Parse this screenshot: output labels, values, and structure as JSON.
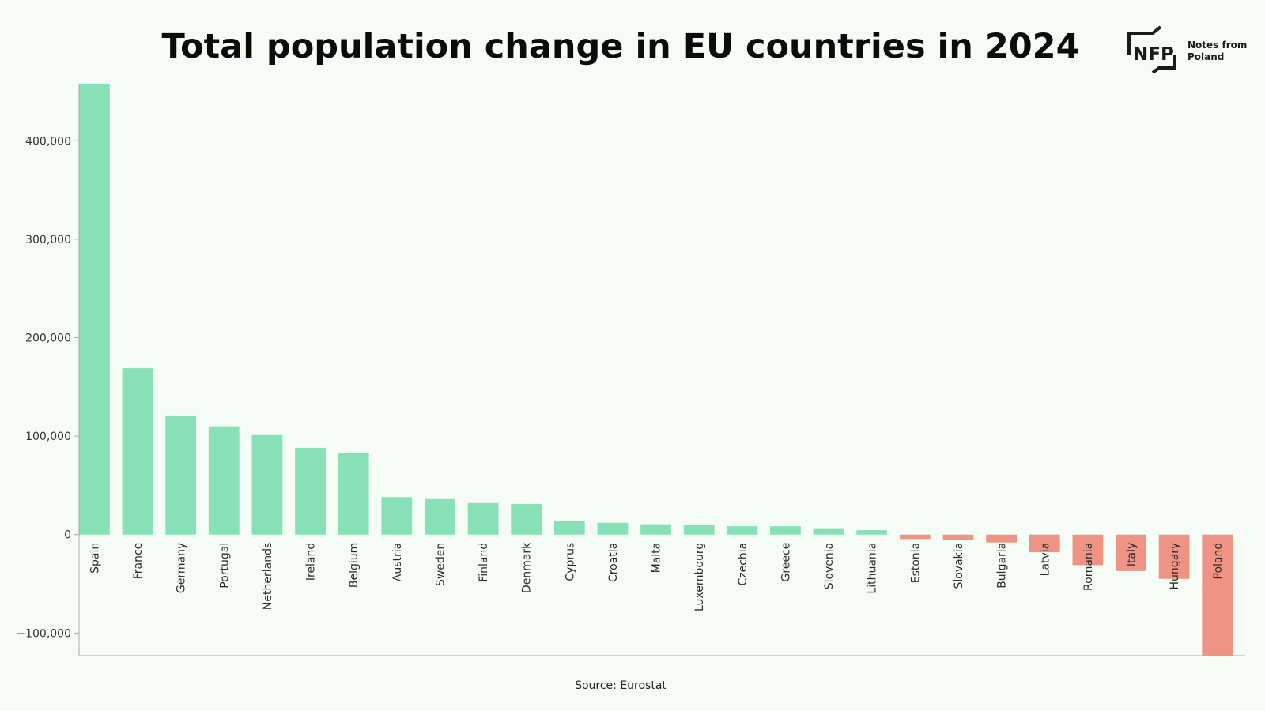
{
  "chart_data": {
    "type": "bar",
    "title": "Total population change in EU countries in 2024",
    "xlabel": "",
    "ylabel": "",
    "categories": [
      "Spain",
      "France",
      "Germany",
      "Portugal",
      "Netherlands",
      "Ireland",
      "Belgium",
      "Austria",
      "Sweden",
      "Finland",
      "Denmark",
      "Cyprus",
      "Croatia",
      "Malta",
      "Luxembourg",
      "Czechia",
      "Greece",
      "Slovenia",
      "Lithuania",
      "Estonia",
      "Slovakia",
      "Bulgaria",
      "Latvia",
      "Romania",
      "Italy",
      "Hungary",
      "Poland"
    ],
    "values": [
      458000,
      169000,
      121000,
      110000,
      101000,
      88000,
      83000,
      38000,
      36000,
      32000,
      31000,
      13700,
      12000,
      10500,
      9500,
      8500,
      8500,
      6500,
      4500,
      -4500,
      -5000,
      -8000,
      -18000,
      -31000,
      -37000,
      -45000,
      -123000
    ],
    "ylim": [
      -123000,
      458000
    ],
    "yticks": [
      -100000,
      0,
      100000,
      200000,
      300000,
      400000
    ],
    "ytick_labels": [
      "−100,000",
      "0",
      "100,000",
      "200,000",
      "300,000",
      "400,000"
    ],
    "grid": false,
    "colors": {
      "positive": "#88e0b6",
      "negative": "#ef9485"
    }
  },
  "source": "Source: Eurostat",
  "logo": {
    "mark": "NFP",
    "line1": "Notes from",
    "line2": "Poland"
  }
}
